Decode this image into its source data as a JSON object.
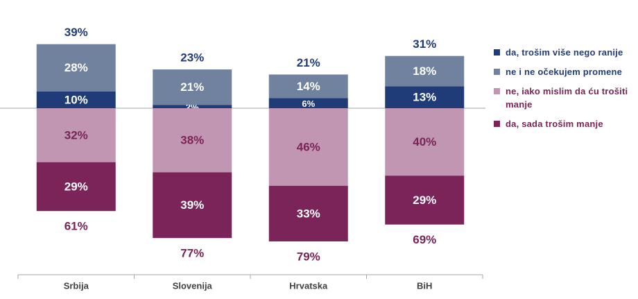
{
  "chart_data": {
    "type": "bar",
    "stacked": true,
    "diverging": true,
    "categories": [
      "Srbija",
      "Slovenija",
      "Hrvatska",
      "BiH"
    ],
    "series": [
      {
        "name": "da, trošim više nego ranije",
        "values": [
          10,
          2,
          6,
          13
        ],
        "direction": "up",
        "color": "#203c78",
        "label_color": "#ffffff"
      },
      {
        "name": "ne i ne očekujem promene",
        "values": [
          28,
          21,
          14,
          18
        ],
        "direction": "up",
        "color": "#71829e",
        "label_color": "#ffffff"
      },
      {
        "name": "ne, iako mislim da ću trošiti manje",
        "values": [
          32,
          38,
          46,
          40
        ],
        "direction": "down",
        "color": "#c196b3",
        "label_color": "#7a2456"
      },
      {
        "name": "da, sada trošim manje",
        "values": [
          29,
          39,
          33,
          29
        ],
        "direction": "down",
        "color": "#7b2459",
        "label_color": "#ffffff"
      }
    ],
    "totals_up": [
      39,
      23,
      21,
      31
    ],
    "totals_down": [
      61,
      77,
      79,
      69
    ],
    "totals_up_color": "#203c78",
    "totals_down_color": "#7a2456",
    "value_suffix": "%",
    "legend_position": "right",
    "baseline_color": "#a6a6a6",
    "axis_color": "#a6a6a6",
    "category_label_color": "#404040"
  }
}
